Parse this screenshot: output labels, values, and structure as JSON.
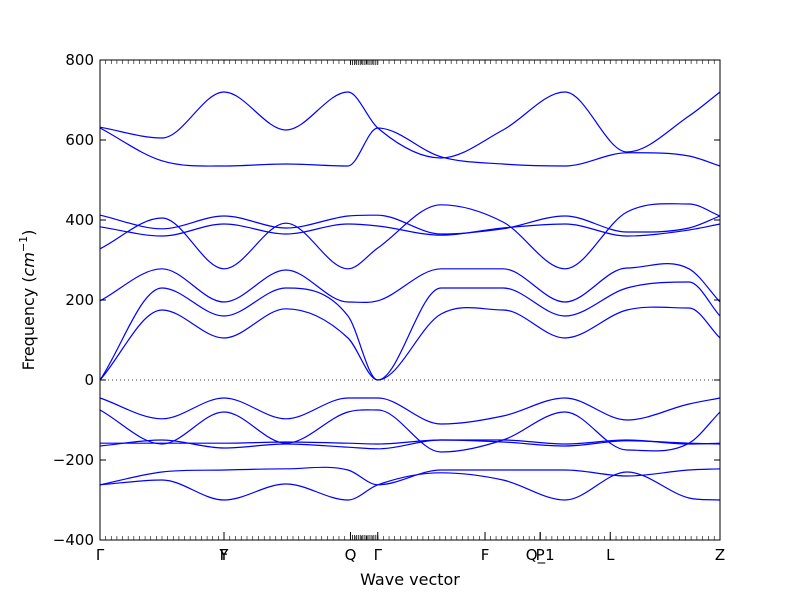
{
  "chart_data": {
    "type": "line",
    "title": "",
    "xlabel": "Wave vector",
    "ylabel": "Frequency (cm⁻¹)",
    "ylabel_text": "Frequency (",
    "ylabel_unit_base": "cm",
    "ylabel_unit_sup": "−1",
    "ylabel_close": ")",
    "xlim": [
      0,
      1.0
    ],
    "ylim": [
      -400,
      800
    ],
    "yticks": [
      -400,
      -200,
      0,
      200,
      400,
      600,
      800
    ],
    "grid": false,
    "legend": "none",
    "line_color": "#0000ff",
    "zero_line": {
      "y": 0,
      "style": "dotted",
      "color": "#000000"
    },
    "high_symmetry_points": [
      {
        "x": 0.0,
        "label": "Γ"
      },
      {
        "x": 0.2,
        "label": "Y"
      },
      {
        "x": 0.2,
        "label": "F"
      },
      {
        "x": 0.404,
        "label": "Q"
      },
      {
        "x": 0.448,
        "label": "Γ"
      },
      {
        "x": 0.621,
        "label": "F"
      },
      {
        "x": 0.71,
        "label": "P"
      },
      {
        "x": 0.71,
        "label": "Q_1"
      },
      {
        "x": 0.823,
        "label": "L"
      },
      {
        "x": 1.0,
        "label": "Z"
      }
    ],
    "series": [
      {
        "x": [
          0,
          0.1,
          0.2,
          0.3,
          0.4,
          0.448,
          0.55,
          0.65,
          0.75,
          0.85,
          0.95,
          1.0
        ],
        "values": [
          -262,
          -250,
          -300,
          -260,
          -300,
          -262,
          -232,
          -250,
          -300,
          -230,
          -295,
          -300
        ]
      },
      {
        "x": [
          0,
          0.1,
          0.2,
          0.3,
          0.4,
          0.448,
          0.55,
          0.65,
          0.75,
          0.85,
          0.95,
          1.0
        ],
        "values": [
          -262,
          -230,
          -225,
          -222,
          -225,
          -262,
          -225,
          -225,
          -225,
          -240,
          -225,
          -222
        ]
      },
      {
        "x": [
          0,
          0.1,
          0.2,
          0.3,
          0.4,
          0.448,
          0.55,
          0.65,
          0.75,
          0.85,
          0.95,
          1.0
        ],
        "values": [
          -165,
          -150,
          -170,
          -160,
          -168,
          -172,
          -150,
          -155,
          -165,
          -152,
          -158,
          -160
        ]
      },
      {
        "x": [
          0,
          0.1,
          0.2,
          0.3,
          0.4,
          0.448,
          0.55,
          0.65,
          0.75,
          0.85,
          0.95,
          1.0
        ],
        "values": [
          -158,
          -158,
          -158,
          -155,
          -158,
          -160,
          -150,
          -150,
          -160,
          -150,
          -160,
          -158
        ]
      },
      {
        "x": [
          0,
          0.1,
          0.2,
          0.3,
          0.4,
          0.448,
          0.55,
          0.65,
          0.75,
          0.85,
          0.95,
          1.0
        ],
        "values": [
          -75,
          -160,
          -80,
          -158,
          -80,
          -75,
          -180,
          -150,
          -80,
          -175,
          -158,
          -80
        ]
      },
      {
        "x": [
          0,
          0.1,
          0.2,
          0.3,
          0.4,
          0.448,
          0.55,
          0.65,
          0.75,
          0.85,
          0.95,
          1.0
        ],
        "values": [
          -45,
          -97,
          -45,
          -97,
          -45,
          -45,
          -110,
          -90,
          -45,
          -100,
          -60,
          -45
        ]
      },
      {
        "x": [
          0,
          0.1,
          0.2,
          0.3,
          0.4,
          0.448,
          0.55,
          0.65,
          0.75,
          0.85,
          0.95,
          1.0
        ],
        "values": [
          0,
          175,
          105,
          178,
          105,
          0,
          165,
          175,
          105,
          175,
          180,
          105
        ]
      },
      {
        "x": [
          0,
          0.1,
          0.2,
          0.3,
          0.4,
          0.448,
          0.55,
          0.65,
          0.75,
          0.85,
          0.95,
          1.0
        ],
        "values": [
          0,
          230,
          160,
          230,
          160,
          0,
          230,
          230,
          160,
          230,
          245,
          160
        ]
      },
      {
        "x": [
          0,
          0.1,
          0.2,
          0.3,
          0.4,
          0.448,
          0.55,
          0.65,
          0.75,
          0.85,
          0.95,
          1.0
        ],
        "values": [
          198,
          278,
          195,
          275,
          195,
          198,
          278,
          278,
          195,
          280,
          278,
          195
        ]
      },
      {
        "x": [
          0,
          0.1,
          0.2,
          0.3,
          0.4,
          0.448,
          0.55,
          0.65,
          0.75,
          0.85,
          0.95,
          1.0
        ],
        "values": [
          328,
          405,
          278,
          392,
          278,
          330,
          438,
          395,
          278,
          420,
          440,
          410
        ]
      },
      {
        "x": [
          0,
          0.1,
          0.2,
          0.3,
          0.4,
          0.448,
          0.55,
          0.65,
          0.75,
          0.85,
          0.95,
          1.0
        ],
        "values": [
          383,
          360,
          390,
          365,
          390,
          385,
          362,
          380,
          390,
          360,
          375,
          390
        ]
      },
      {
        "x": [
          0,
          0.1,
          0.2,
          0.3,
          0.4,
          0.448,
          0.55,
          0.65,
          0.75,
          0.85,
          0.95,
          1.0
        ],
        "values": [
          412,
          378,
          410,
          380,
          410,
          412,
          365,
          378,
          410,
          370,
          380,
          410
        ]
      },
      {
        "x": [
          0,
          0.1,
          0.2,
          0.3,
          0.4,
          0.448,
          0.55,
          0.65,
          0.75,
          0.85,
          0.95,
          1.0
        ],
        "values": [
          630,
          548,
          535,
          540,
          535,
          630,
          558,
          540,
          535,
          568,
          560,
          535
        ]
      },
      {
        "x": [
          0,
          0.1,
          0.2,
          0.3,
          0.4,
          0.448,
          0.55,
          0.65,
          0.75,
          0.85,
          0.95,
          1.0
        ],
        "values": [
          632,
          605,
          720,
          625,
          720,
          630,
          555,
          625,
          720,
          570,
          660,
          720
        ]
      }
    ]
  }
}
